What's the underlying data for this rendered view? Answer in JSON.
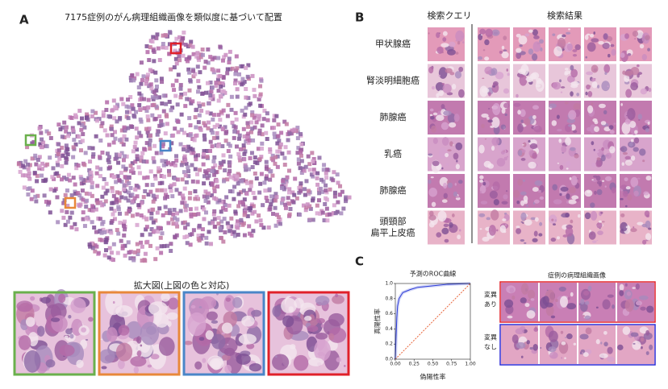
{
  "panel_labels": [
    "A",
    "B",
    "C"
  ],
  "panel_a": {
    "title": "7175症例のがん病理組織画像を類似度に基づいて配置",
    "inset_caption": "拡大図(上図の色と対応)"
  },
  "panel_b": {
    "query_header": "検索クエリ",
    "result_header": "検索結果",
    "rows": [
      [
        "甲状腺癌"
      ],
      [
        "腎淡明細胞癌"
      ],
      [
        "肺腺癌"
      ],
      [
        "乳癌"
      ],
      [
        "肺腺癌"
      ],
      [
        "頭頸部",
        "扁平上皮癌"
      ]
    ]
  },
  "panel_c": {
    "images_title": "症例の病理組織画像",
    "groups": [
      [
        "変異",
        "あり"
      ],
      [
        "変異",
        "なし"
      ]
    ]
  },
  "chart_data": {
    "type": "line",
    "title": "予測のROC曲線",
    "x_label": "偽陽性率",
    "y_label": "真陽性率",
    "xlim": [
      0,
      1
    ],
    "ylim": [
      0,
      1
    ],
    "xticks": [
      {
        "value": 0,
        "label": "0.00"
      },
      {
        "value": 0.25,
        "label": "0.25"
      },
      {
        "value": 0.5,
        "label": "0.50"
      },
      {
        "value": 0.75,
        "label": "0.75"
      },
      {
        "value": 1,
        "label": "1.00"
      }
    ],
    "yticks": [
      {
        "value": 0,
        "label": "0.0"
      },
      {
        "value": 0.2,
        "label": "0.2"
      },
      {
        "value": 0.4,
        "label": "0.4"
      },
      {
        "value": 0.6,
        "label": "0.6"
      },
      {
        "value": 0.8,
        "label": "0.8"
      },
      {
        "value": 1,
        "label": "1.0"
      }
    ],
    "series": [
      {
        "color": "#2b3bd6",
        "x": [
          0,
          0.01,
          0.02,
          0.03,
          0.05,
          0.08,
          0.1,
          0.15,
          0.2,
          0.3,
          0.5,
          0.7,
          1
        ],
        "values": [
          0,
          0.3,
          0.55,
          0.7,
          0.8,
          0.85,
          0.88,
          0.9,
          0.92,
          0.95,
          0.97,
          0.99,
          1
        ]
      },
      {
        "color": "#e8643a",
        "line_style": "dashed",
        "x": [
          0,
          1
        ],
        "values": [
          0,
          1
        ]
      }
    ]
  }
}
